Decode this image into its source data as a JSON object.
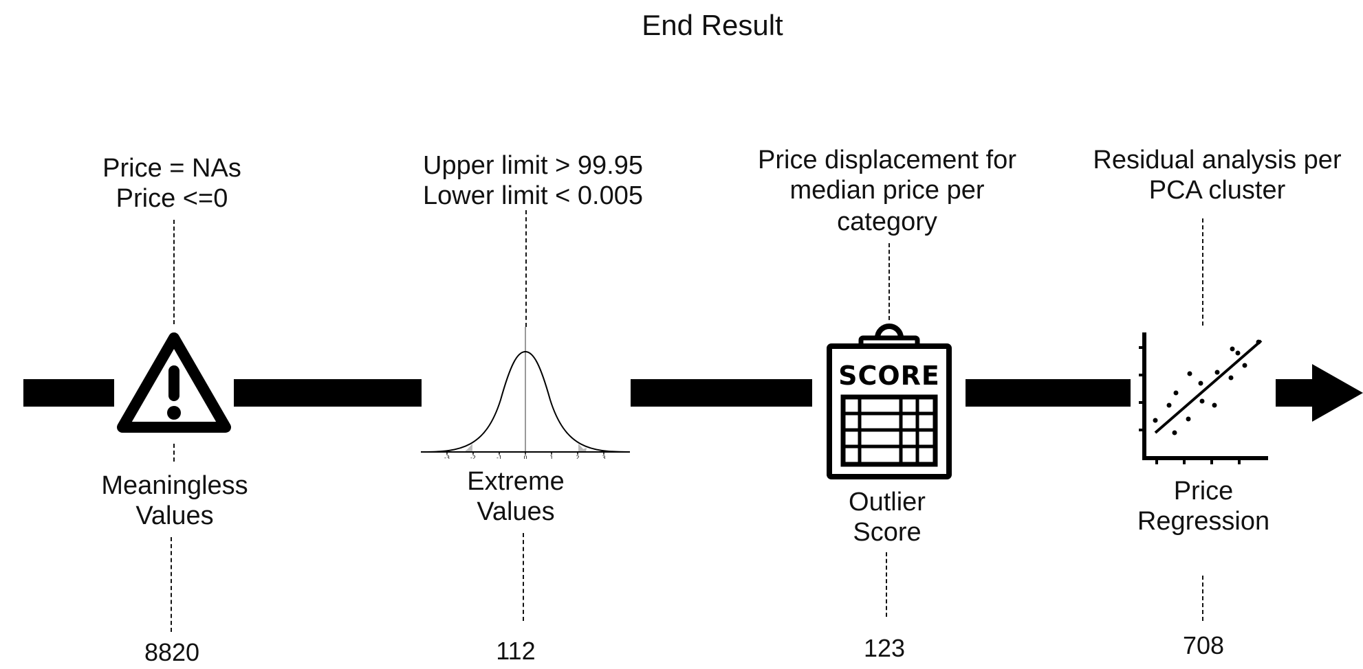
{
  "title": "End Result",
  "stages": [
    {
      "criteria": [
        "Price = NAs",
        "Price <=0"
      ],
      "label": [
        "Meaningless",
        "Values"
      ],
      "count": "8820",
      "icon": "warning-triangle-icon"
    },
    {
      "criteria": [
        "Upper limit > 99.95",
        "Lower limit < 0.005"
      ],
      "label": [
        "Extreme",
        "Values"
      ],
      "count": "112",
      "icon": "normal-distribution-icon",
      "axis_ticks": [
        "-3",
        "-2",
        "-1",
        "0",
        "1",
        "2",
        "3"
      ]
    },
    {
      "criteria": [
        "Price displacement for",
        "median price per",
        "category"
      ],
      "label": [
        "Outlier",
        "Score"
      ],
      "count": "123",
      "icon": "scoreboard-clipboard-icon",
      "icon_text": "SCORE"
    },
    {
      "criteria": [
        "Residual analysis per",
        "PCA cluster"
      ],
      "label": [
        "Price",
        "Regression"
      ],
      "count": "708",
      "icon": "scatter-regression-icon"
    }
  ],
  "pipeline_end": "arrow-right-icon"
}
